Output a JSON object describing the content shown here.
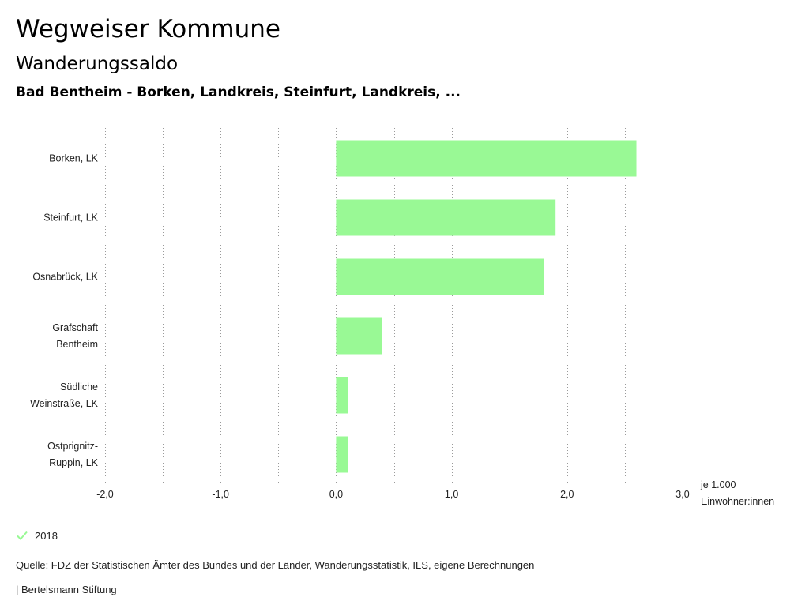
{
  "header": {
    "title": "Wegweiser Kommune",
    "subtitle": "Wanderungssaldo",
    "region": "Bad Bentheim - Borken, Landkreis, Steinfurt, Landkreis, ..."
  },
  "chart_data": {
    "type": "bar",
    "orientation": "horizontal",
    "categories": [
      [
        "Borken, LK"
      ],
      [
        "Steinfurt, LK"
      ],
      [
        "Osnabrück, LK"
      ],
      [
        "Grafschaft",
        "Bentheim"
      ],
      [
        "Südliche",
        "Weinstraße, LK"
      ],
      [
        "Ostprignitz-",
        "Ruppin, LK"
      ]
    ],
    "series": [
      {
        "name": "2018",
        "color": "#99f995",
        "values": [
          2.6,
          1.9,
          1.8,
          0.4,
          0.1,
          0.1
        ]
      }
    ],
    "xlim": [
      -2.0,
      3.0
    ],
    "xticks": [
      "-2,0",
      "-1,0",
      "0,0",
      "1,0",
      "2,0",
      "3,0"
    ],
    "xtick_values": [
      -2,
      -1,
      0,
      1,
      2,
      3
    ],
    "unit_label": [
      "je 1.000",
      "Einwohner:innen"
    ],
    "grid": "vertical-dotted",
    "legend_position": "bottom-left"
  },
  "legend": {
    "label": "2018",
    "color": "#99f995",
    "icon": "check-icon"
  },
  "footer": {
    "source": "Quelle: FDZ der Statistischen Ämter des Bundes und der Länder, Wanderungsstatistik, ILS, eigene Berechnungen",
    "org": "| Bertelsmann Stiftung"
  }
}
